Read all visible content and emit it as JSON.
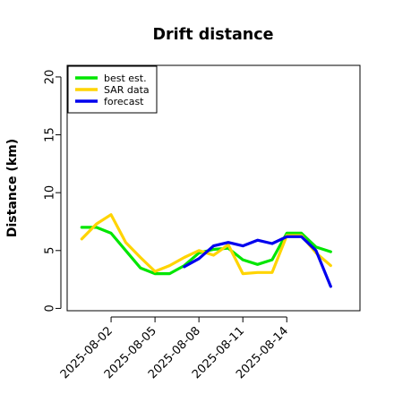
{
  "colors": {
    "best_est": "#00e600",
    "sar_data": "#ffd400",
    "forecast": "#0000ee",
    "axis": "#000000",
    "background": "#ffffff"
  },
  "chart_data": {
    "type": "line",
    "title": "Drift distance",
    "xlabel": "",
    "ylabel": "Distance (km)",
    "x_is_date": true,
    "xlim": [
      "2025-07-30",
      "2025-08-19"
    ],
    "ylim": [
      -0.2,
      21
    ],
    "yticks": [
      0,
      5,
      10,
      15,
      20
    ],
    "xticks": [
      "2025-08-02",
      "2025-08-05",
      "2025-08-08",
      "2025-08-11",
      "2025-08-14"
    ],
    "grid": false,
    "legend_position": "top-left",
    "series": [
      {
        "name": "best est.",
        "color_key": "best_est",
        "x": [
          "2025-07-31",
          "2025-08-01",
          "2025-08-02",
          "2025-08-03",
          "2025-08-04",
          "2025-08-05",
          "2025-08-06",
          "2025-08-07",
          "2025-08-08",
          "2025-08-09",
          "2025-08-10",
          "2025-08-11",
          "2025-08-12",
          "2025-08-13",
          "2025-08-14",
          "2025-08-15",
          "2025-08-16",
          "2025-08-17"
        ],
        "y": [
          7.0,
          7.0,
          6.5,
          5.0,
          3.5,
          3.0,
          3.0,
          3.7,
          4.8,
          5.1,
          5.2,
          4.2,
          3.8,
          4.2,
          6.5,
          6.5,
          5.3,
          4.9
        ]
      },
      {
        "name": "SAR data",
        "color_key": "sar_data",
        "x": [
          "2025-07-31",
          "2025-08-01",
          "2025-08-02",
          "2025-08-03",
          "2025-08-04",
          "2025-08-05",
          "2025-08-06",
          "2025-08-07",
          "2025-08-08",
          "2025-08-09",
          "2025-08-10",
          "2025-08-11",
          "2025-08-12",
          "2025-08-13",
          "2025-08-14",
          "2025-08-15",
          "2025-08-16",
          "2025-08-17"
        ],
        "y": [
          6.0,
          7.3,
          8.1,
          5.7,
          4.4,
          3.2,
          3.7,
          4.4,
          5.0,
          4.6,
          5.5,
          3.0,
          3.1,
          3.1,
          6.3,
          6.3,
          4.8,
          3.7
        ]
      },
      {
        "name": "forecast",
        "color_key": "forecast",
        "x": [
          "2025-08-07",
          "2025-08-08",
          "2025-08-09",
          "2025-08-10",
          "2025-08-11",
          "2025-08-12",
          "2025-08-13",
          "2025-08-14",
          "2025-08-15",
          "2025-08-16",
          "2025-08-17"
        ],
        "y": [
          3.6,
          4.3,
          5.4,
          5.7,
          5.4,
          5.9,
          5.6,
          6.2,
          6.2,
          5.0,
          1.9
        ]
      }
    ]
  }
}
